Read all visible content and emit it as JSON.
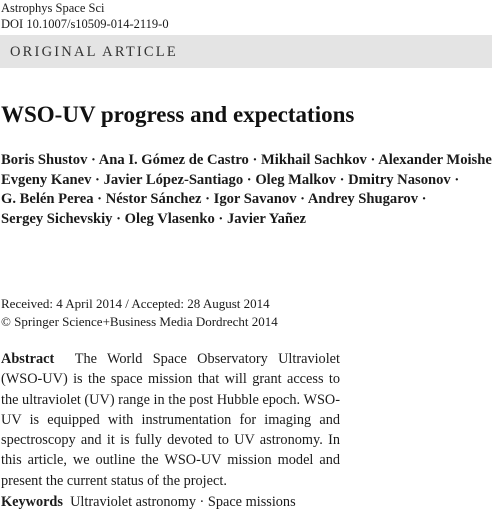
{
  "journal": {
    "name": "Astrophys Space Sci",
    "doi": "DOI 10.1007/s10509-014-2119-0"
  },
  "article_type": "ORIGINAL ARTICLE",
  "title": "WSO-UV progress and expectations",
  "authors": {
    "lines": [
      "Boris Shustov · Ana I. Gómez de Castro · Mikhail Sachkov · Alexander Moisheev ·",
      "Evgeny Kanev · Javier López-Santiago · Oleg Malkov · Dmitry Nasonov ·",
      "G. Belén Perea · Néstor Sánchez · Igor Savanov · Andrey Shugarov ·",
      "Sergey Sichevskiy · Oleg Vlasenko · Javier Yañez"
    ]
  },
  "dates": {
    "received": "Received: 4 April 2014 / Accepted: 28 August 2014",
    "copyright": "© Springer Science+Business Media Dordrecht 2014"
  },
  "abstract": {
    "label": "Abstract",
    "text": "The World Space Observatory Ultraviolet (WSO-UV) is the space mission that will grant access to the ultraviolet (UV) range in the post Hubble epoch. WSO-UV is equipped with instrumentation for imaging and spectroscopy and it is fully devoted to UV astronomy. In this article, we outline the WSO-UV mission model and present the current status of the project."
  },
  "keywords": {
    "label": "Keywords",
    "text": "Ultraviolet astronomy · Space missions"
  }
}
